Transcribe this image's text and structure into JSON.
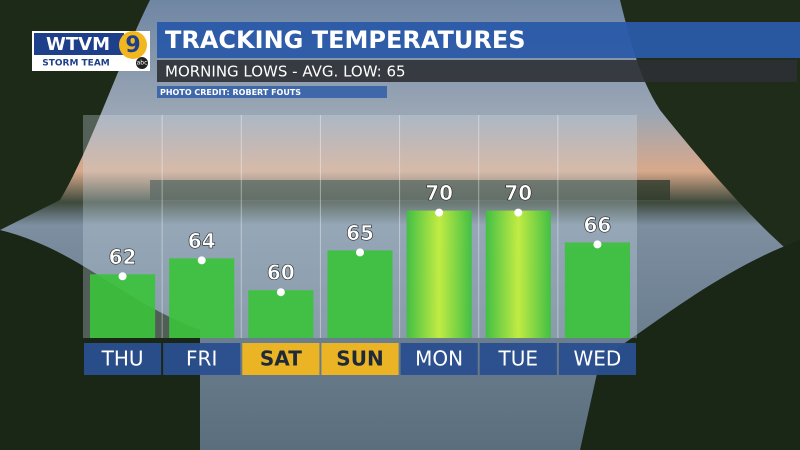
{
  "logo": {
    "station": "WTVM",
    "channel": "9",
    "team": "STORM TEAM",
    "network": "abc"
  },
  "photo_credit": "PHOTO CREDIT: ROBERT FOUTS",
  "chart_data": {
    "type": "bar",
    "title": "TRACKING TEMPERATURES",
    "subtitle": "MORNING LOWS - AVG. LOW: 65",
    "categories": [
      "THU",
      "FRI",
      "SAT",
      "SUN",
      "MON",
      "TUE",
      "WED"
    ],
    "values": [
      62,
      64,
      60,
      65,
      70,
      70,
      66
    ],
    "color": "#3cc23c",
    "label_colors": [
      "#2a4f8f",
      "#2a4f8f",
      "#f2b71f",
      "#f2b71f",
      "#2a4f8f",
      "#2a4f8f",
      "#2a4f8f"
    ],
    "ylim": [
      54,
      82
    ]
  }
}
